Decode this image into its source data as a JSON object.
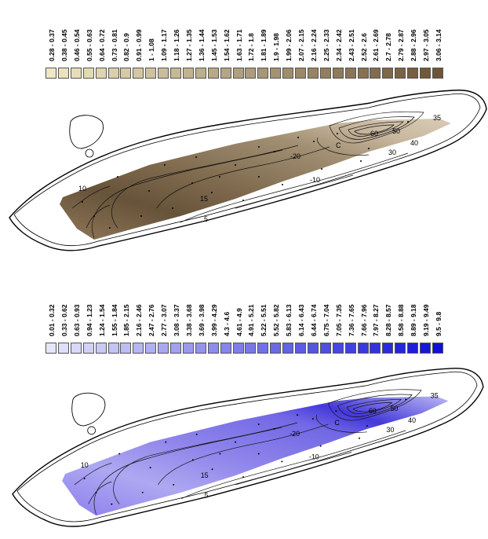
{
  "maps": [
    {
      "palette": {
        "light": "#efe8c2",
        "dark": "#6e5436",
        "surface_mid": "#8b7453"
      },
      "legend": [
        "0.28 - 0.37",
        "0.38 - 0.45",
        "0.46 - 0.54",
        "0.55 - 0.63",
        "0.64 - 0.72",
        "0.73 - 0.81",
        "0.82 - 0.9",
        "0.91 - 0.99",
        "1 - 1.08",
        "1.09 - 1.17",
        "1.18 - 1.26",
        "1.27 - 1.35",
        "1.36 - 1.44",
        "1.45 - 1.53",
        "1.54 - 1.62",
        "1.63 - 1.71",
        "1.72 - 1.8",
        "1.81 - 1.89",
        "1.9 - 1.98",
        "1.99 - 2.06",
        "2.07 - 2.15",
        "2.16 - 2.24",
        "2.25 - 2.33",
        "2.34 - 2.42",
        "2.43 - 2.51",
        "2.52 - 2.6",
        "2.61 - 2.69",
        "2.7 - 2.78",
        "2.79 - 2.87",
        "2.88 - 2.96",
        "2.97 - 3.05",
        "3.06 - 3.14"
      ]
    },
    {
      "palette": {
        "light": "#e6e6fa",
        "dark": "#1010d8",
        "surface_mid": "#8a86e6"
      },
      "legend": [
        "0.01 - 0.32",
        "0.33 - 0.62",
        "0.63 - 0.93",
        "0.94 - 1.23",
        "1.24 - 1.54",
        "1.55 - 1.84",
        "1.85 - 2.15",
        "2.16 - 2.46",
        "2.47 - 2.76",
        "2.77 - 3.07",
        "3.08 - 3.37",
        "3.38 - 3.68",
        "3.69 - 3.98",
        "3.99 - 4.29",
        "4.3 - 4.6",
        "4.61 - 4.9",
        "4.91 - 5.21",
        "5.22 - 5.51",
        "5.52 - 5.82",
        "5.83 - 6.13",
        "6.14 - 6.43",
        "6.44 - 6.74",
        "6.75 - 7.04",
        "7.05 - 7.35",
        "7.36 - 7.65",
        "7.66 - 7.96",
        "7.97 - 8.27",
        "8.28 - 8.57",
        "8.58 - 8.88",
        "8.89 - 9.18",
        "9.19 - 9.49",
        "9.5 - 9.8"
      ]
    }
  ],
  "contour_labels": [
    "35",
    "50",
    "60",
    "40",
    "30",
    "C",
    "-20",
    "10",
    "-10",
    "15",
    "5"
  ]
}
